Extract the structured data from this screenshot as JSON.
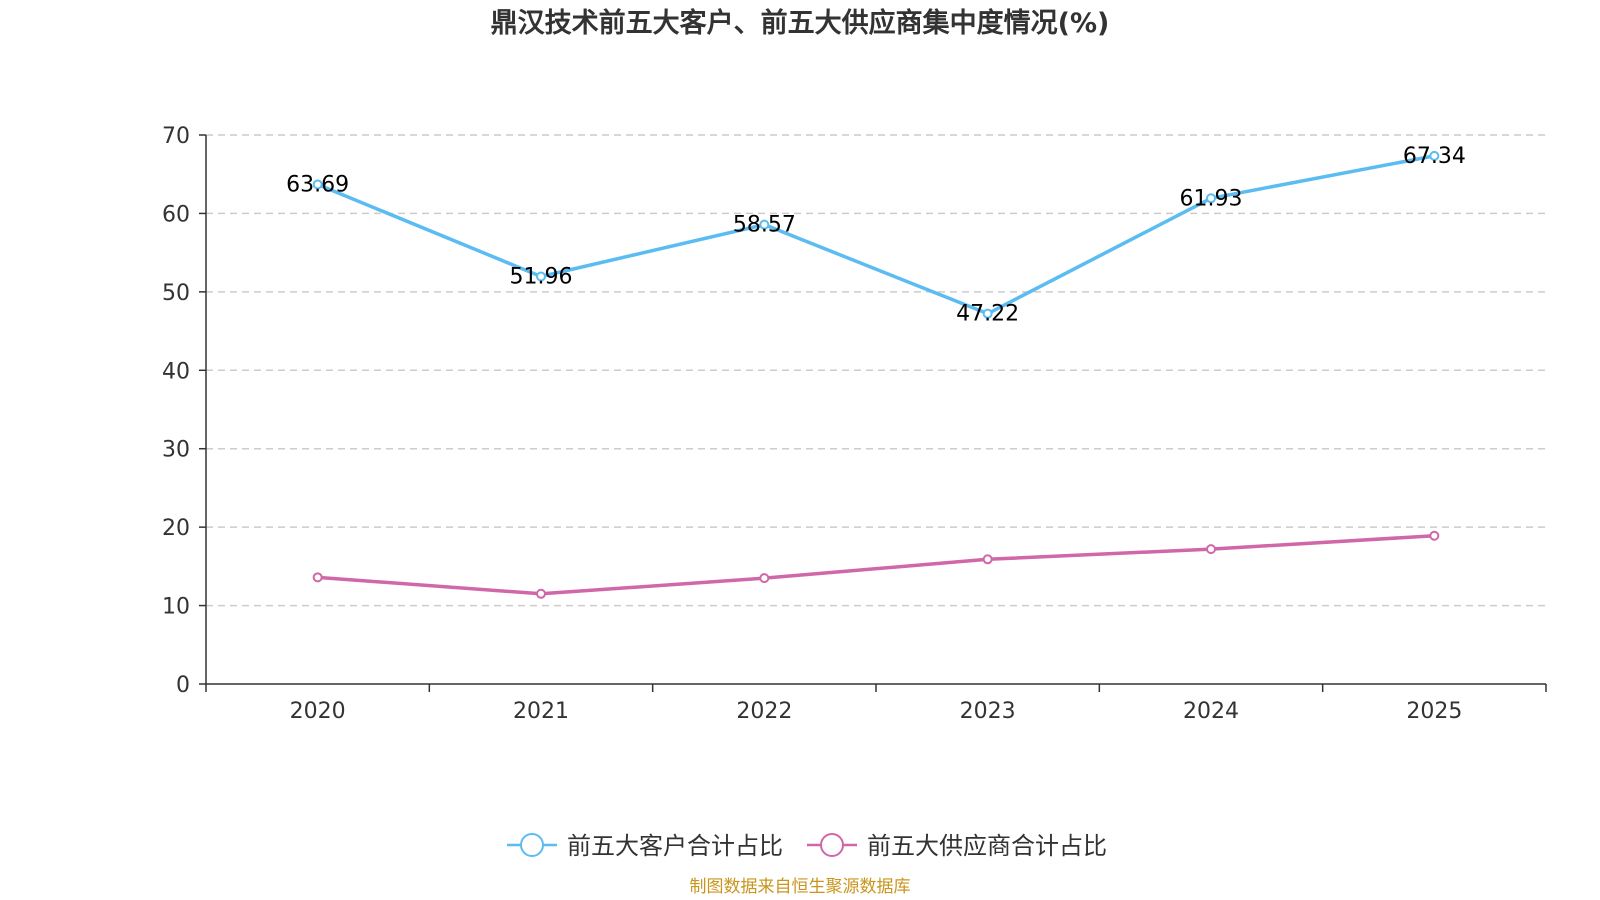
{
  "chart_data": {
    "type": "line",
    "title": "鼎汉技术前五大客户、前五大供应商集中度情况(%)",
    "categories": [
      "2020",
      "2021",
      "2022",
      "2023",
      "2024",
      "2025"
    ],
    "ylim": [
      0,
      70
    ],
    "yticks": [
      "0",
      "10",
      "20",
      "30",
      "40",
      "50",
      "60",
      "70"
    ],
    "ytick_values": [
      0,
      10,
      20,
      30,
      40,
      50,
      60,
      70
    ],
    "grid": true,
    "legend_position": "bottom-center",
    "series": [
      {
        "name": "前五大客户合计占比",
        "color": "#5bbcf2",
        "values": [
          63.69,
          51.96,
          58.57,
          47.22,
          61.93,
          67.34
        ],
        "labels": [
          "63.69",
          "51.96",
          "58.57",
          "47.22",
          "61.93",
          "67.34"
        ],
        "show_labels": true
      },
      {
        "name": "前五大供应商合计占比",
        "color": "#d067a8",
        "values": [
          13.6,
          11.5,
          13.5,
          15.9,
          17.2,
          18.9
        ],
        "show_labels": false
      }
    ],
    "source": "制图数据来自恒生聚源数据库",
    "source_color": "#c8961e"
  }
}
